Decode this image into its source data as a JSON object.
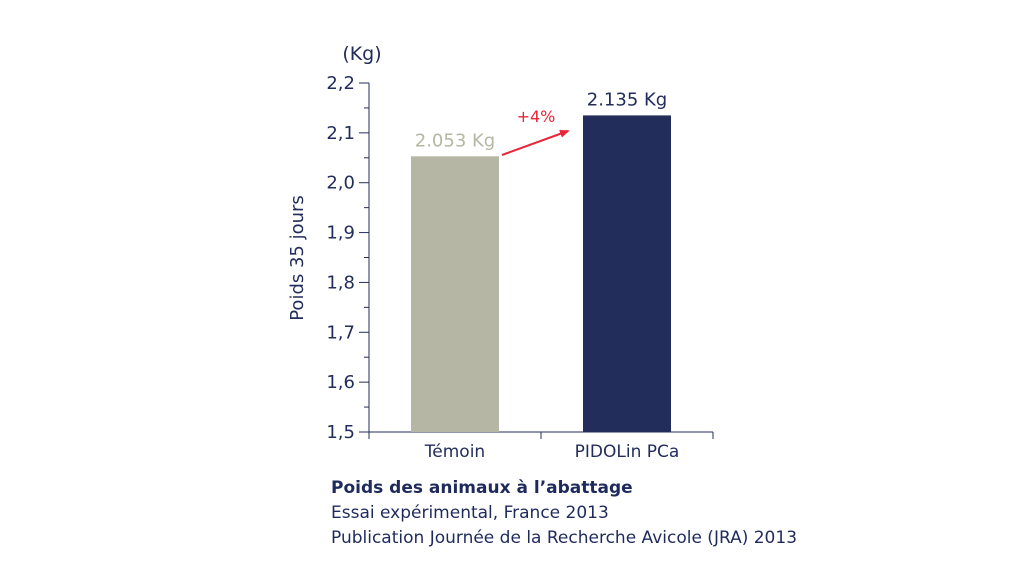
{
  "chart_data": {
    "type": "bar",
    "unit_label": "(Kg)",
    "ylabel": "Poids 35 jours",
    "ylim": [
      1.5,
      2.2
    ],
    "yticks": [
      {
        "value": 1.5,
        "label": "1,5"
      },
      {
        "value": 1.6,
        "label": "1,6"
      },
      {
        "value": 1.7,
        "label": "1,7"
      },
      {
        "value": 1.8,
        "label": "1,8"
      },
      {
        "value": 1.9,
        "label": "1,9"
      },
      {
        "value": 2.0,
        "label": "2,0"
      },
      {
        "value": 2.1,
        "label": "2,1"
      },
      {
        "value": 2.2,
        "label": "2,2"
      }
    ],
    "categories": [
      "Témoin",
      "PIDOLin PCa"
    ],
    "values": [
      2.053,
      2.135
    ],
    "value_labels": [
      "2.053 Kg",
      "2.135 Kg"
    ],
    "colors": [
      "#b5b7a4",
      "#232d5c"
    ],
    "label_colors": [
      "#b5b7a4",
      "#232d5c"
    ],
    "axis_color": "#232d5c",
    "annotation": {
      "text": "+4%",
      "color": "#e8263a"
    }
  },
  "caption": {
    "title": "Poids des animaux à l’abattage",
    "line1": "Essai expérimental, France 2013",
    "line2": "Publication Journée de la Recherche Avicole (JRA) 2013"
  }
}
